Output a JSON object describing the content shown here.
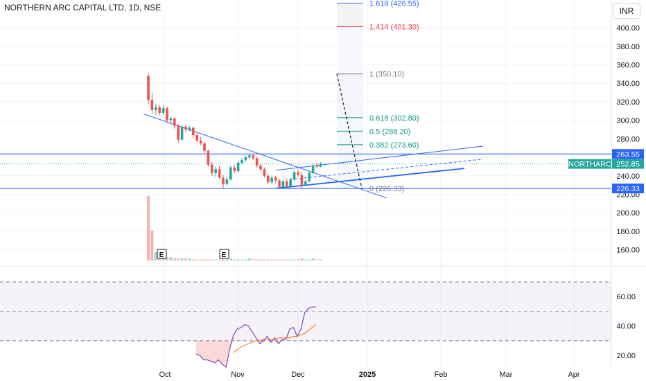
{
  "header": {
    "title": "NORTHERN ARC CAPITAL LTD, 1D, NSE",
    "currency": "INR"
  },
  "colors": {
    "up": "#26a69a",
    "down": "#ef5350",
    "line": "#2962ff",
    "rsi": "#7e57c2",
    "rsi_ma": "#ff6d00",
    "fib_red": "#f23645",
    "fib_green": "#089981",
    "fib_grey": "#787b86",
    "fib_blue": "#2962ff"
  },
  "chart_data": [
    {
      "type": "candlestick",
      "title": "NORTHERN ARC CAPITAL LTD, 1D, NSE",
      "ylim": [
        147,
        430
      ],
      "y_ticks": [
        160,
        180,
        200,
        220,
        240,
        260,
        280,
        300,
        320,
        340,
        360,
        380,
        400
      ],
      "x_ticks": [
        "Oct",
        "Nov",
        "Dec",
        "2025",
        "Feb",
        "Mar",
        "Apr"
      ],
      "candles": [
        {
          "o": 348,
          "h": 351,
          "l": 318,
          "c": 322
        },
        {
          "o": 322,
          "h": 330,
          "l": 307,
          "c": 311
        },
        {
          "o": 311,
          "h": 318,
          "l": 306,
          "c": 314
        },
        {
          "o": 314,
          "h": 317,
          "l": 305,
          "c": 308
        },
        {
          "o": 308,
          "h": 316,
          "l": 306,
          "c": 313
        },
        {
          "o": 313,
          "h": 315,
          "l": 297,
          "c": 300
        },
        {
          "o": 300,
          "h": 304,
          "l": 295,
          "c": 302
        },
        {
          "o": 302,
          "h": 303,
          "l": 291,
          "c": 294
        },
        {
          "o": 294,
          "h": 296,
          "l": 276,
          "c": 279
        },
        {
          "o": 279,
          "h": 295,
          "l": 278,
          "c": 293
        },
        {
          "o": 293,
          "h": 295,
          "l": 287,
          "c": 290
        },
        {
          "o": 290,
          "h": 294,
          "l": 288,
          "c": 292
        },
        {
          "o": 292,
          "h": 293,
          "l": 281,
          "c": 284
        },
        {
          "o": 284,
          "h": 286,
          "l": 276,
          "c": 278
        },
        {
          "o": 278,
          "h": 282,
          "l": 273,
          "c": 275
        },
        {
          "o": 275,
          "h": 277,
          "l": 264,
          "c": 267
        },
        {
          "o": 267,
          "h": 268,
          "l": 250,
          "c": 252
        },
        {
          "o": 252,
          "h": 255,
          "l": 240,
          "c": 243
        },
        {
          "o": 243,
          "h": 250,
          "l": 239,
          "c": 247
        },
        {
          "o": 247,
          "h": 251,
          "l": 236,
          "c": 238
        },
        {
          "o": 238,
          "h": 241,
          "l": 226,
          "c": 231
        },
        {
          "o": 231,
          "h": 239,
          "l": 229,
          "c": 236
        },
        {
          "o": 236,
          "h": 251,
          "l": 235,
          "c": 249
        },
        {
          "o": 249,
          "h": 252,
          "l": 243,
          "c": 245
        },
        {
          "o": 245,
          "h": 256,
          "l": 244,
          "c": 254
        },
        {
          "o": 254,
          "h": 259,
          "l": 253,
          "c": 257
        },
        {
          "o": 257,
          "h": 262,
          "l": 255,
          "c": 260
        },
        {
          "o": 260,
          "h": 263,
          "l": 258,
          "c": 262
        },
        {
          "o": 262,
          "h": 264,
          "l": 257,
          "c": 259
        },
        {
          "o": 259,
          "h": 261,
          "l": 249,
          "c": 251
        },
        {
          "o": 251,
          "h": 253,
          "l": 245,
          "c": 247
        },
        {
          "o": 247,
          "h": 249,
          "l": 238,
          "c": 240
        },
        {
          "o": 240,
          "h": 242,
          "l": 231,
          "c": 233
        },
        {
          "o": 233,
          "h": 240,
          "l": 231,
          "c": 238
        },
        {
          "o": 238,
          "h": 240,
          "l": 232,
          "c": 235
        },
        {
          "o": 235,
          "h": 237,
          "l": 226,
          "c": 228
        },
        {
          "o": 228,
          "h": 236,
          "l": 226,
          "c": 234
        },
        {
          "o": 234,
          "h": 237,
          "l": 227,
          "c": 229
        },
        {
          "o": 229,
          "h": 238,
          "l": 228,
          "c": 236
        },
        {
          "o": 236,
          "h": 246,
          "l": 234,
          "c": 244
        },
        {
          "o": 244,
          "h": 247,
          "l": 239,
          "c": 241
        },
        {
          "o": 241,
          "h": 244,
          "l": 227,
          "c": 230
        },
        {
          "o": 230,
          "h": 236,
          "l": 229,
          "c": 234
        },
        {
          "o": 234,
          "h": 245,
          "l": 233,
          "c": 243
        },
        {
          "o": 243,
          "h": 253,
          "l": 242,
          "c": 251
        },
        {
          "o": 251,
          "h": 254,
          "l": 248,
          "c": 250
        },
        {
          "o": 250,
          "h": 255,
          "l": 249,
          "c": 253
        }
      ],
      "volume": [
        60,
        28,
        8,
        6,
        4,
        3,
        3,
        2,
        2,
        2,
        2,
        2,
        1,
        1,
        1,
        1,
        1,
        1,
        1,
        1,
        1,
        1,
        2,
        1,
        1,
        1,
        1,
        2,
        1,
        1,
        1,
        1,
        1,
        1,
        1,
        1,
        1,
        1,
        1,
        1,
        1,
        2,
        1,
        1,
        2,
        1,
        1
      ],
      "volume_markers": [
        "E",
        "E"
      ],
      "price_labels": [
        {
          "text": "NORTHARC",
          "value": "252.85"
        },
        {
          "text": "",
          "value": "263.55"
        },
        {
          "text": "",
          "value": "226.33"
        }
      ],
      "fibonacci": [
        {
          "label": "0 (226.33)",
          "level": 226.33,
          "color": "fib_grey"
        },
        {
          "label": "0.382 (273.60)",
          "level": 273.6,
          "color": "fib_green"
        },
        {
          "label": "0.5 (288.20)",
          "level": 288.2,
          "color": "fib_green"
        },
        {
          "label": "0.618 (302.80)",
          "level": 302.8,
          "color": "fib_green"
        },
        {
          "label": "1 (350.10)",
          "level": 350.1,
          "color": "fib_grey"
        },
        {
          "label": "1.414 (401.30)",
          "level": 401.3,
          "color": "fib_red"
        },
        {
          "label": "1.618 (426.55)",
          "level": 426.55,
          "color": "fib_blue"
        }
      ],
      "horizontal_levels": [
        263.55,
        226.33
      ]
    },
    {
      "type": "line",
      "ylim": [
        13,
        78
      ],
      "y_ticks": [
        20,
        40,
        60
      ],
      "bands": [
        30,
        50,
        70
      ],
      "series": [
        {
          "values": [
            21,
            20,
            17,
            17,
            16,
            15,
            17,
            14,
            12,
            25,
            34,
            38,
            39,
            41,
            40,
            36,
            32,
            28,
            30,
            33,
            29,
            32,
            28,
            31,
            31,
            38,
            39,
            33,
            38,
            49,
            52,
            53,
            53
          ]
        },
        {
          "values": [
            null,
            null,
            null,
            null,
            null,
            null,
            null,
            null,
            null,
            null,
            null,
            null,
            null,
            null,
            null,
            null,
            null,
            null,
            null,
            null,
            null,
            null,
            null,
            null,
            null,
            null,
            null,
            null,
            null,
            null,
            null,
            null,
            null
          ]
        }
      ],
      "rsi_ma_start": 10,
      "rsi_ma": [
        22,
        24,
        26,
        27,
        28,
        29,
        30,
        30,
        31,
        31,
        31,
        31,
        32,
        32,
        32,
        32,
        33,
        33,
        34,
        35,
        37,
        39,
        41
      ]
    }
  ]
}
